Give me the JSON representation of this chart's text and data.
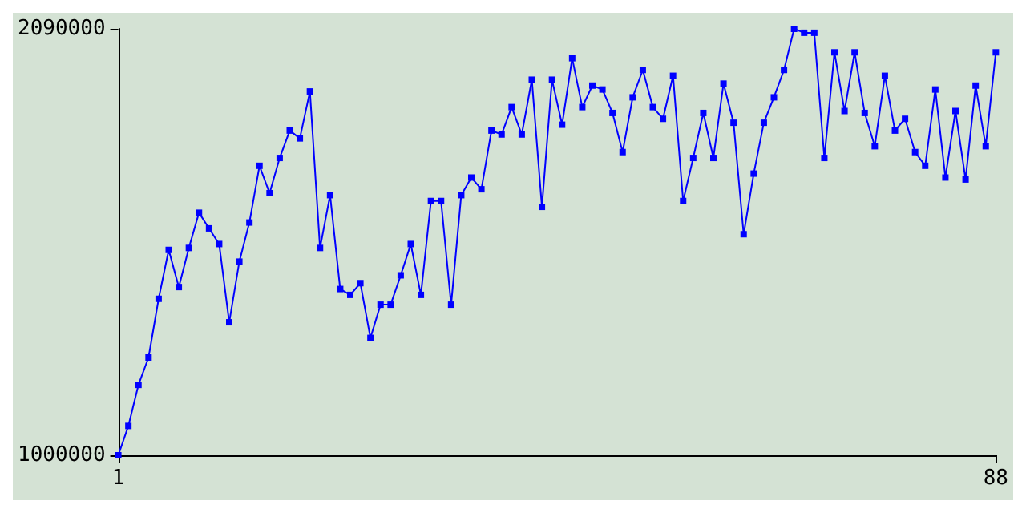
{
  "chart_data": {
    "type": "line",
    "x": [
      1,
      2,
      3,
      4,
      5,
      6,
      7,
      8,
      9,
      10,
      11,
      12,
      13,
      14,
      15,
      16,
      17,
      18,
      19,
      20,
      21,
      22,
      23,
      24,
      25,
      26,
      27,
      28,
      29,
      30,
      31,
      32,
      33,
      34,
      35,
      36,
      37,
      38,
      39,
      40,
      41,
      42,
      43,
      44,
      45,
      46,
      47,
      48,
      49,
      50,
      51,
      52,
      53,
      54,
      55,
      56,
      57,
      58,
      59,
      60,
      61,
      62,
      63,
      64,
      65,
      66,
      67,
      68,
      69,
      70,
      71,
      72,
      73,
      74,
      75,
      76,
      77,
      78,
      79,
      80,
      81,
      82,
      83,
      84,
      85,
      86,
      87,
      88
    ],
    "series": [
      {
        "color": "#0000ff",
        "values": [
          1000000,
          1075000,
          1180000,
          1250000,
          1400000,
          1525000,
          1430000,
          1530000,
          1620000,
          1580000,
          1540000,
          1340000,
          1495000,
          1595000,
          1740000,
          1670000,
          1760000,
          1830000,
          1810000,
          1930000,
          1530000,
          1665000,
          1425000,
          1410000,
          1440000,
          1300000,
          1385000,
          1385000,
          1460000,
          1540000,
          1410000,
          1650000,
          1650000,
          1385000,
          1665000,
          1710000,
          1680000,
          1830000,
          1820000,
          1890000,
          1820000,
          1960000,
          1635000,
          1960000,
          1845000,
          2015000,
          1890000,
          1945000,
          1935000,
          1875000,
          1775000,
          1915000,
          1985000,
          1890000,
          1860000,
          1970000,
          1650000,
          1760000,
          1875000,
          1760000,
          1950000,
          1850000,
          1565000,
          1720000,
          1850000,
          1915000,
          1985000,
          2090000,
          2080000,
          2080000,
          1760000,
          2030000,
          1880000,
          2030000,
          1875000,
          1790000,
          1970000,
          1830000,
          1860000,
          1775000,
          1740000,
          1935000,
          1710000,
          1880000,
          1705000,
          1945000,
          1790000,
          2030000
        ]
      }
    ],
    "xlim": [
      1,
      88
    ],
    "xticks": [
      1,
      88
    ],
    "ylim": [
      1000000,
      2090000
    ],
    "yticks": [
      1000000,
      2090000
    ],
    "grid": false,
    "marker": "square",
    "line_style": "solid"
  }
}
